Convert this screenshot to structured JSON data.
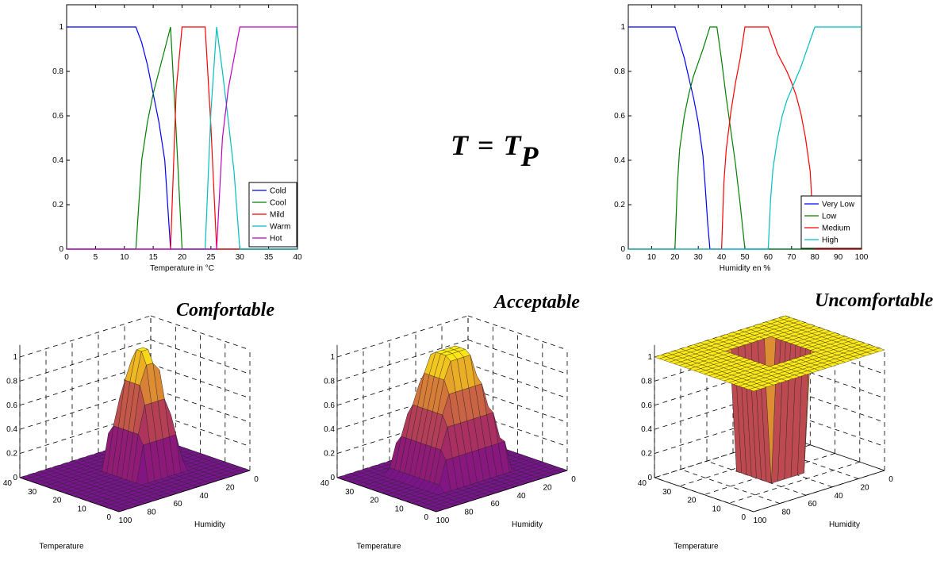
{
  "formula": {
    "lhs": "T",
    "eq": "=",
    "rhs": "T",
    "sub": "P"
  },
  "chart_data": [
    {
      "type": "line",
      "xlabel": "Temperature in °C",
      "xlim": [
        0,
        40
      ],
      "ylim": [
        0,
        1.1
      ],
      "xticks": [
        "0",
        "5",
        "10",
        "15",
        "20",
        "25",
        "30",
        "35",
        "40"
      ],
      "yticks": [
        "0",
        "0.2",
        "0.4",
        "0.6",
        "0.8",
        "1"
      ],
      "legend_position": "bottom-right",
      "series": [
        {
          "name": "Cold",
          "color": "#0000ff",
          "x": [
            0,
            12,
            13,
            14,
            15,
            16,
            17,
            18,
            40
          ],
          "y": [
            1,
            1,
            0.93,
            0.83,
            0.7,
            0.57,
            0.4,
            0,
            0
          ]
        },
        {
          "name": "Cool",
          "color": "#008000",
          "x": [
            0,
            12,
            13,
            14,
            15,
            16,
            17,
            18,
            19,
            20,
            40
          ],
          "y": [
            0,
            0,
            0.4,
            0.57,
            0.7,
            0.8,
            0.9,
            1,
            0.52,
            0,
            0
          ]
        },
        {
          "name": "Mild",
          "color": "#ff0000",
          "x": [
            0,
            18,
            19,
            20,
            24,
            25,
            26,
            40
          ],
          "y": [
            0,
            0,
            0.72,
            1,
            1,
            0.55,
            0,
            0
          ]
        },
        {
          "name": "Warm",
          "color": "#00bfbf",
          "x": [
            0,
            24,
            25,
            26,
            27,
            28,
            29,
            30,
            40
          ],
          "y": [
            0,
            0,
            0.62,
            1,
            0.8,
            0.58,
            0.35,
            0,
            0
          ]
        },
        {
          "name": "Hot",
          "color": "#bf00bf",
          "x": [
            0,
            26,
            27,
            28,
            29,
            30,
            40
          ],
          "y": [
            0,
            0,
            0.5,
            0.72,
            0.86,
            1,
            1
          ]
        }
      ]
    },
    {
      "type": "line",
      "xlabel": "Humidity en %",
      "xlim": [
        0,
        100
      ],
      "ylim": [
        0,
        1.1
      ],
      "xticks": [
        "0",
        "10",
        "20",
        "30",
        "40",
        "50",
        "60",
        "70",
        "80",
        "90",
        "100"
      ],
      "yticks": [
        "0",
        "0.2",
        "0.4",
        "0.6",
        "0.8",
        "1"
      ],
      "legend_position": "bottom-right",
      "series": [
        {
          "name": "Very Low",
          "color": "#0000ff",
          "x": [
            0,
            20,
            22,
            24,
            26,
            28,
            30,
            32,
            33,
            34,
            35,
            100
          ],
          "y": [
            1,
            1,
            0.93,
            0.86,
            0.77,
            0.68,
            0.57,
            0.42,
            0.28,
            0.12,
            0,
            0
          ]
        },
        {
          "name": "Low",
          "color": "#008000",
          "x": [
            0,
            20,
            21,
            22,
            24,
            26,
            28,
            30,
            32,
            35,
            38,
            40,
            42,
            44,
            46,
            48,
            50,
            100
          ],
          "y": [
            0,
            0,
            0.28,
            0.45,
            0.6,
            0.7,
            0.78,
            0.84,
            0.9,
            1,
            1,
            0.85,
            0.68,
            0.53,
            0.38,
            0.2,
            0,
            0
          ]
        },
        {
          "name": "Medium",
          "color": "#ff0000",
          "x": [
            0,
            40,
            41,
            42,
            44,
            46,
            48,
            50,
            55,
            60,
            62,
            64,
            66,
            68,
            70,
            72,
            74,
            76,
            78,
            79,
            80,
            100
          ],
          "y": [
            0,
            0,
            0.3,
            0.45,
            0.62,
            0.75,
            0.86,
            1,
            1,
            1,
            0.94,
            0.88,
            0.84,
            0.8,
            0.75,
            0.69,
            0.61,
            0.5,
            0.35,
            0.15,
            0,
            0
          ]
        },
        {
          "name": "High",
          "color": "#00bfbf",
          "x": [
            0,
            60,
            61,
            62,
            64,
            66,
            68,
            70,
            72,
            74,
            76,
            78,
            80,
            100
          ],
          "y": [
            0,
            0,
            0.22,
            0.36,
            0.5,
            0.6,
            0.67,
            0.72,
            0.77,
            0.82,
            0.88,
            0.94,
            1,
            1
          ]
        }
      ]
    },
    {
      "type": "surface",
      "title": "Comfortable",
      "xlabel": "Humidity",
      "ylabel": "Temperature",
      "humidity_ticks": [
        "0",
        "20",
        "40",
        "60",
        "80",
        "100"
      ],
      "temperature_ticks": [
        "0",
        "10",
        "20",
        "30",
        "40"
      ],
      "z_ticks": [
        "0",
        "0.2",
        "0.4",
        "0.6",
        "0.8",
        "1"
      ],
      "shape": "peak"
    },
    {
      "type": "surface",
      "title": "Acceptable",
      "xlabel": "Humidity",
      "ylabel": "Temperature",
      "humidity_ticks": [
        "0",
        "20",
        "40",
        "60",
        "80",
        "100"
      ],
      "temperature_ticks": [
        "0",
        "10",
        "20",
        "30",
        "40"
      ],
      "z_ticks": [
        "0",
        "0.2",
        "0.4",
        "0.6",
        "0.8",
        "1"
      ],
      "shape": "ridge"
    },
    {
      "type": "surface",
      "title": "Uncomfortable",
      "xlabel": "Humidity",
      "ylabel": "Temperature",
      "humidity_ticks": [
        "0",
        "20",
        "40",
        "60",
        "80",
        "100"
      ],
      "temperature_ticks": [
        "0",
        "10",
        "20",
        "30",
        "40"
      ],
      "z_ticks": [
        "0",
        "0.2",
        "0.4",
        "0.6",
        "0.8",
        "1"
      ],
      "shape": "frame"
    }
  ]
}
